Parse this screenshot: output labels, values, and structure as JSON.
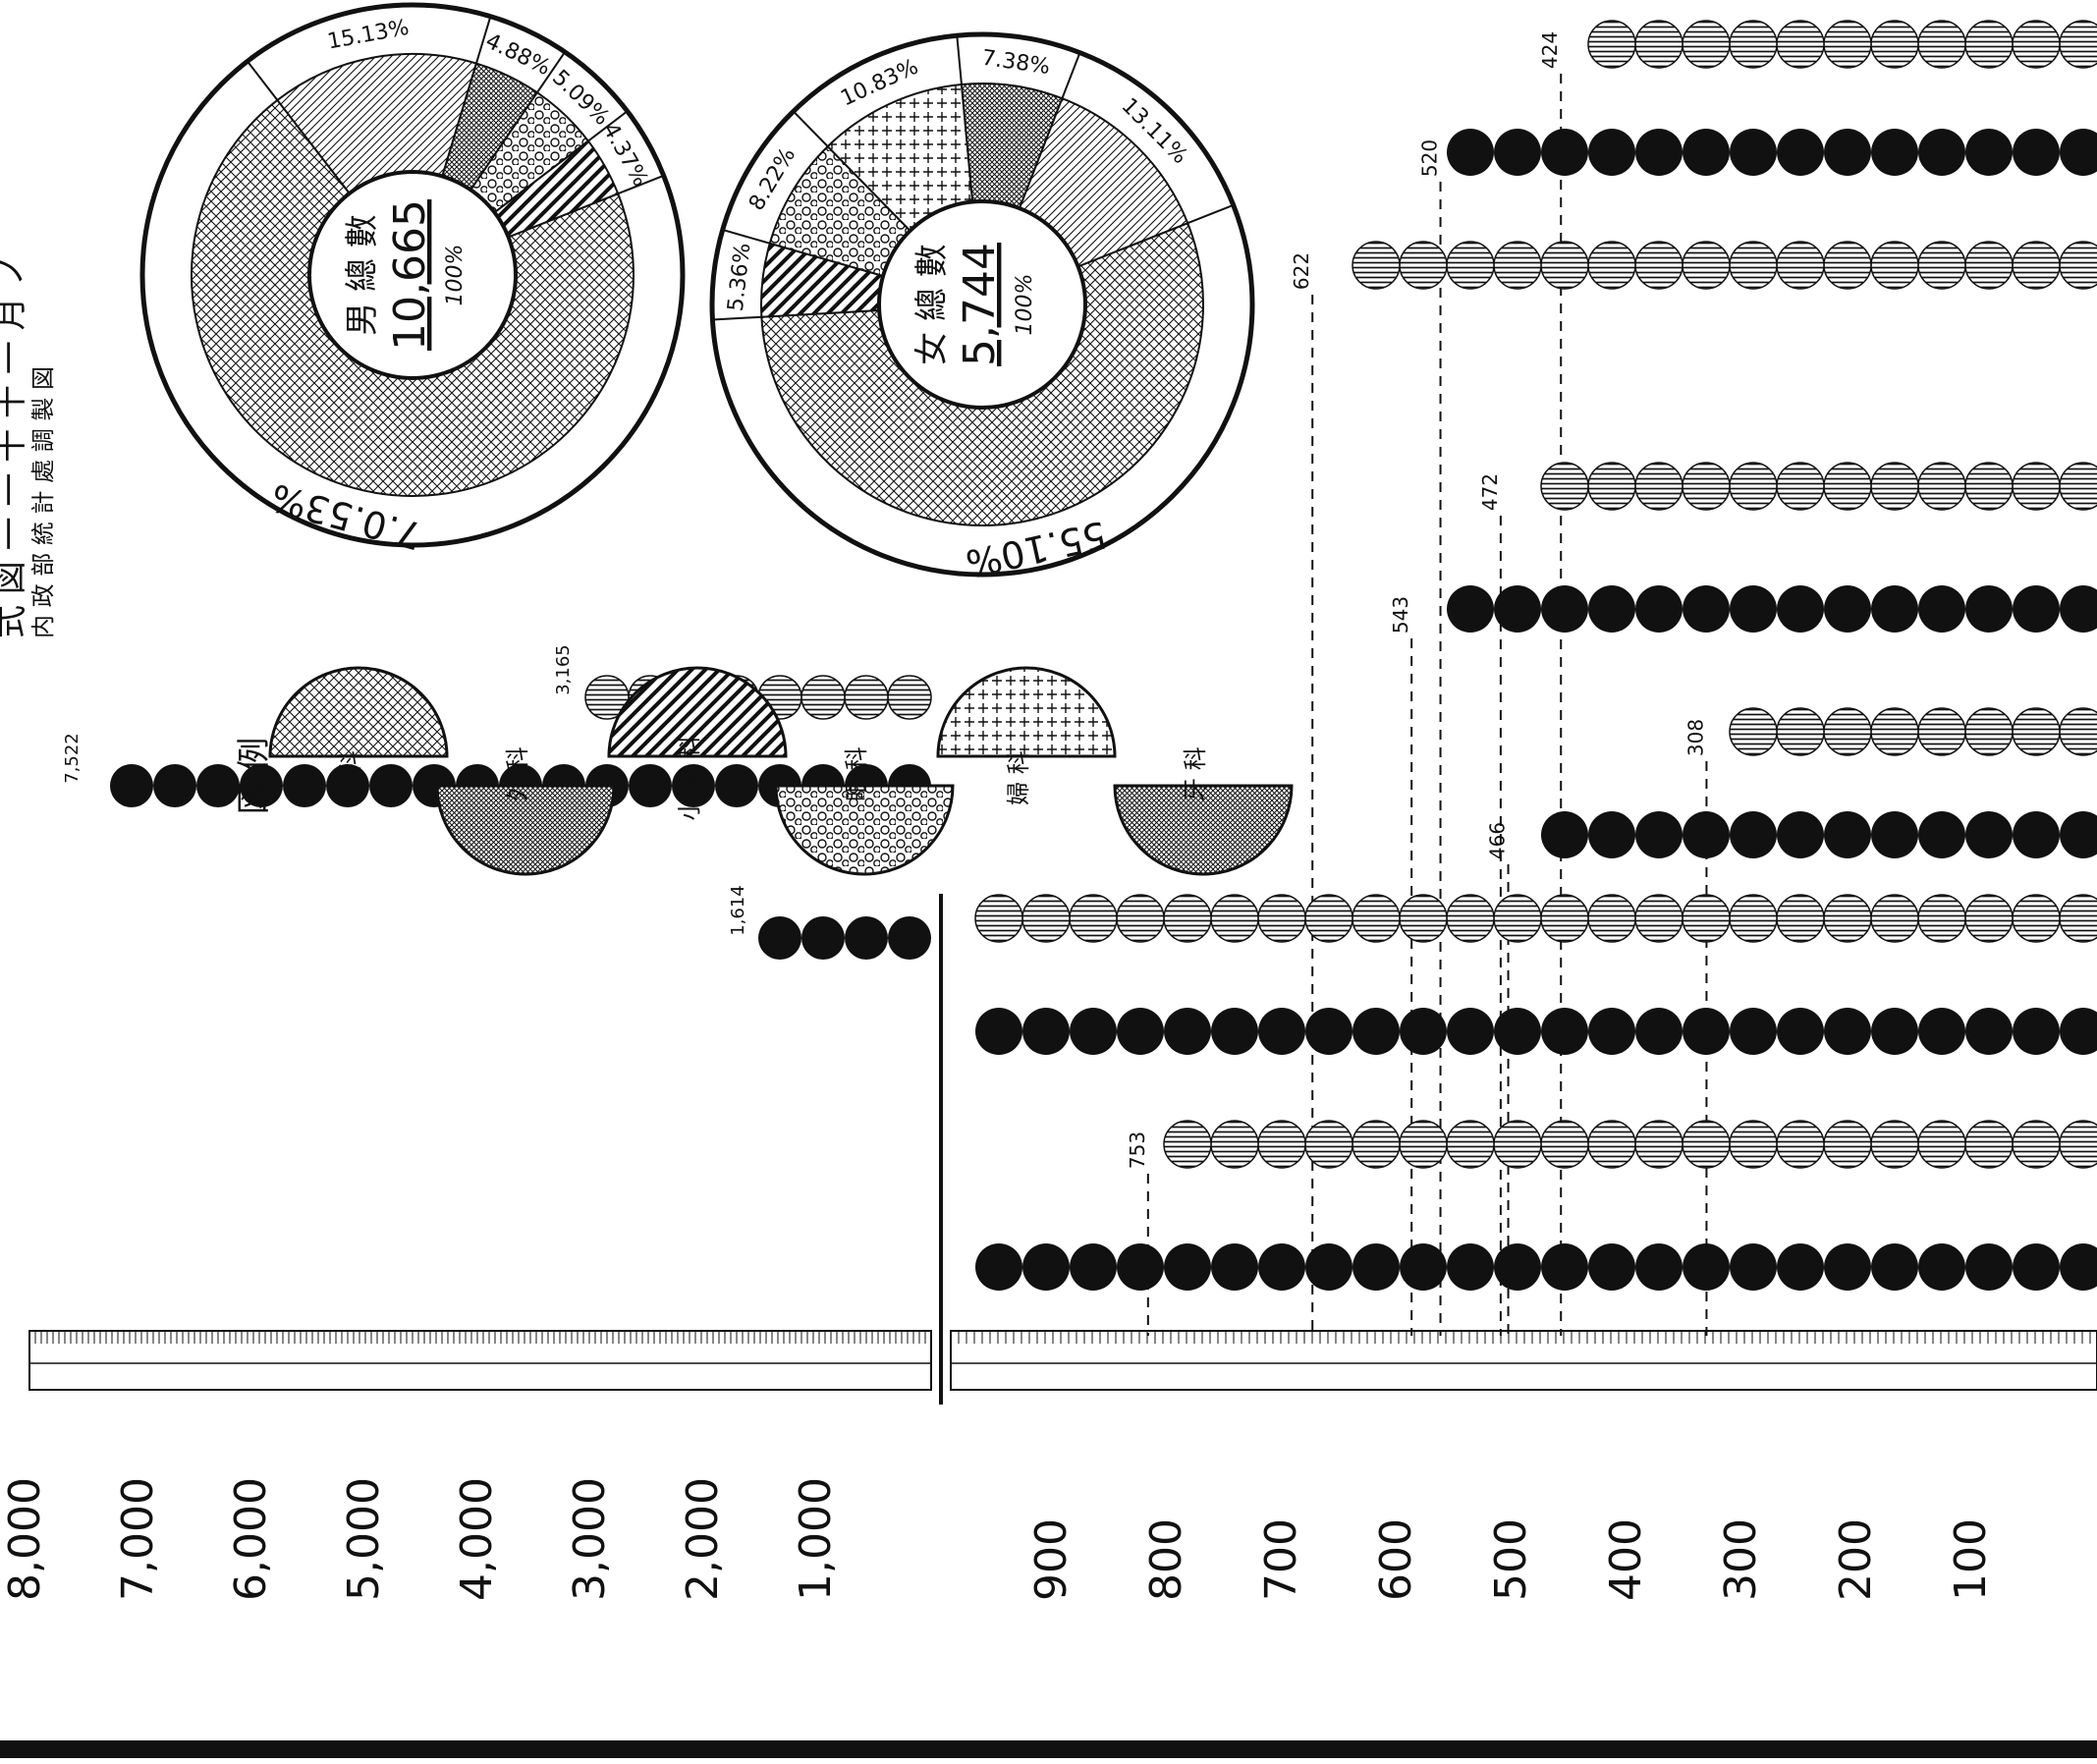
{
  "page": {
    "title_fragment": "式 図 一 一 十 十 一 月 ノ",
    "subtitle": "内 政 部 統 計 處 調 製 図",
    "legend_title": "図 例"
  },
  "chart_data": [
    {
      "type": "bar",
      "orientation": "vertical-bars-on-rotated-page",
      "panel": "large-scale",
      "ticks": [
        "8,000",
        "7,000",
        "6,000",
        "5,000",
        "4,000",
        "3,000",
        "2,000",
        "1,000"
      ],
      "ylim": [
        0,
        8000
      ],
      "series": [
        {
          "name": "",
          "style": "horizontal-stripe",
          "values": [
            3165
          ],
          "labels": [
            "3,165"
          ]
        },
        {
          "name": "",
          "style": "solid-black",
          "values": [
            7522
          ],
          "labels": [
            "7,522"
          ]
        },
        {
          "name": "",
          "style": "solid-black",
          "values": [
            1614
          ],
          "labels": [
            "1,614"
          ]
        }
      ]
    },
    {
      "type": "bar",
      "orientation": "vertical-bars-on-rotated-page",
      "panel": "small-scale",
      "ticks": [
        "900",
        "800",
        "700",
        "600",
        "500",
        "400",
        "300",
        "200",
        "100"
      ],
      "ylim": [
        0,
        900
      ],
      "series": [
        {
          "style": "horizontal-stripe",
          "value": 424,
          "label": "424"
        },
        {
          "style": "solid-black",
          "value": 520,
          "label": "520"
        },
        {
          "style": "horizontal-stripe",
          "value": 622,
          "label": "622"
        },
        {
          "style": "horizontal-stripe",
          "value": 472,
          "label": "472"
        },
        {
          "style": "solid-black",
          "value": 543,
          "label": "543"
        },
        {
          "style": "horizontal-stripe",
          "value": 308,
          "label": "308"
        },
        {
          "style": "solid-black",
          "value": 466,
          "label": "466"
        },
        {
          "style": "horizontal-stripe",
          "value": 900,
          "label": ""
        },
        {
          "style": "solid-black",
          "value": 900,
          "label": ""
        },
        {
          "style": "horizontal-stripe",
          "value": 753,
          "label": "753"
        },
        {
          "style": "solid-black",
          "value": 900,
          "label": ""
        }
      ]
    },
    {
      "type": "pie",
      "name": "male",
      "center_title": "男 總 數",
      "total": "10,665",
      "total_pct": "100%",
      "slices": [
        {
          "label": "7.0.53%",
          "value": 70.53,
          "pattern": "cross-hatch"
        },
        {
          "label": "15.13%",
          "value": 15.13,
          "pattern": "diagonal"
        },
        {
          "label": "4.88%",
          "value": 4.88,
          "pattern": "dense-cross"
        },
        {
          "label": "5.09%",
          "value": 5.09,
          "pattern": "circles"
        },
        {
          "label": "4.37%",
          "value": 4.37,
          "pattern": "diagonal-bold"
        }
      ]
    },
    {
      "type": "pie",
      "name": "female",
      "center_title": "女 總 數",
      "total": "5,744",
      "total_pct": "100%",
      "slices": [
        {
          "label": "55.10%",
          "value": 55.1,
          "pattern": "cross-hatch"
        },
        {
          "label": "5.36%",
          "value": 5.36,
          "pattern": "diagonal-bold"
        },
        {
          "label": "8.22%",
          "value": 8.22,
          "pattern": "circles"
        },
        {
          "label": "10.83%",
          "value": 10.83,
          "pattern": "plus"
        },
        {
          "label": "7.38%",
          "value": 7.38,
          "pattern": "dense-cross"
        },
        {
          "label": "13.11%",
          "value": 13.11,
          "pattern": "diagonal"
        }
      ]
    }
  ],
  "legend": [
    {
      "label": "内 科",
      "pattern": "cross-hatch"
    },
    {
      "label": "外 科",
      "pattern": "dense-cross"
    },
    {
      "label": "小 兒 科",
      "pattern": "diagonal-bold"
    },
    {
      "label": "眼 科",
      "pattern": "circles"
    },
    {
      "label": "婦 科",
      "pattern": "plus"
    },
    {
      "label": "牙 科",
      "pattern": "dense-cross"
    }
  ]
}
